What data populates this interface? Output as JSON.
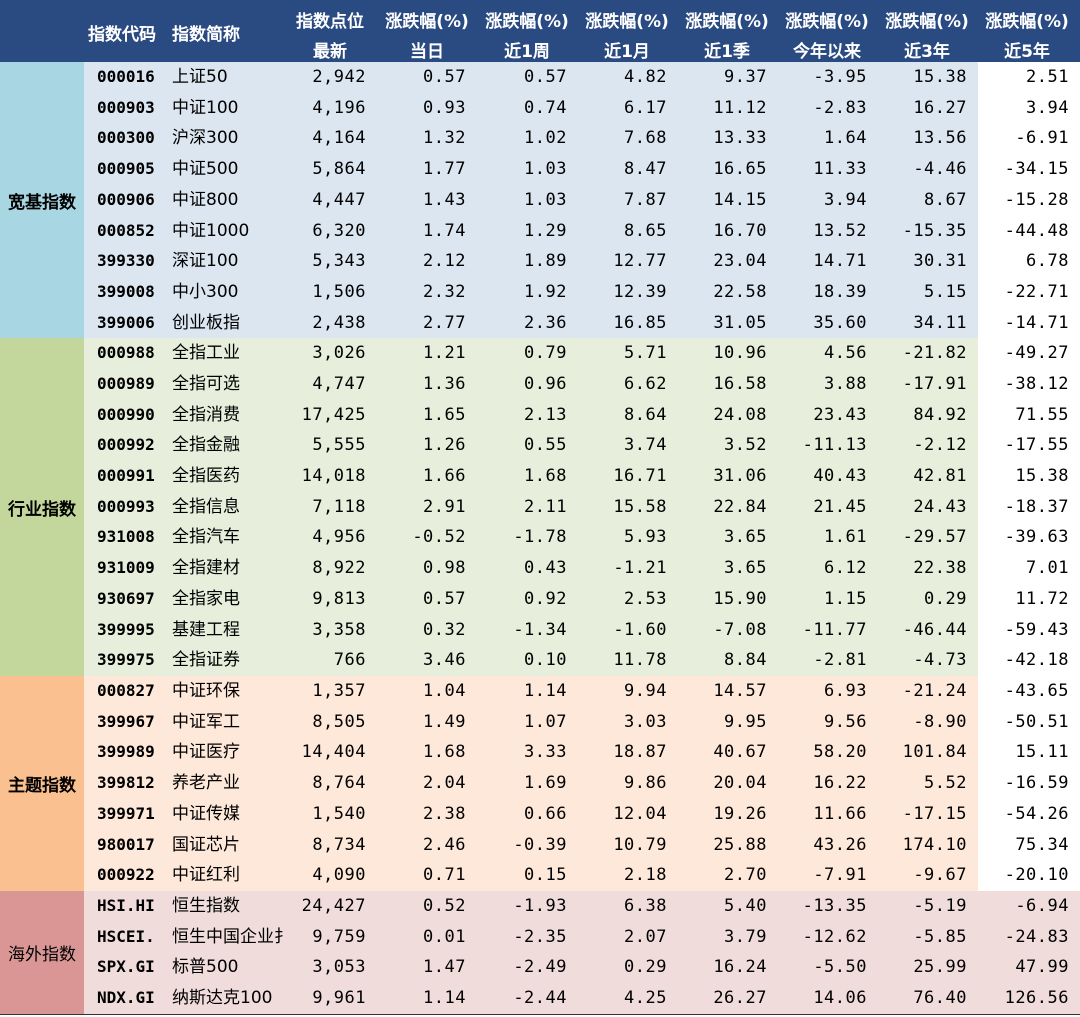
{
  "header": {
    "row1": [
      "指数代码",
      "指数简称",
      "指数点位",
      "涨跌幅(%)",
      "涨跌幅(%)",
      "涨跌幅(%)",
      "涨跌幅(%)",
      "涨跌幅(%)",
      "涨跌幅(%)",
      "涨跌幅(%)"
    ],
    "row2": [
      "",
      "",
      "最新",
      "当日",
      "近1周",
      "近1月",
      "近1季",
      "今年以来",
      "近3年",
      "近5年"
    ]
  },
  "colors": {
    "header_bg": "#2a4a82",
    "groups": [
      "#dbe6f1",
      "#e7eedb",
      "#fde8d9",
      "#f1dcdc"
    ],
    "labels": [
      "#a9d6e3",
      "#c3d69b",
      "#fac090",
      "#d99694"
    ],
    "last_col": [
      "#ffffff",
      "#ffffff",
      "#ffffff",
      "#f1dcdc"
    ]
  },
  "groups": [
    {
      "label": "宽基指数",
      "bold": true,
      "rows": [
        [
          "000016",
          "上证50",
          "2,942",
          "0.57",
          "0.57",
          "4.82",
          "9.37",
          "-3.95",
          "15.38",
          "2.51"
        ],
        [
          "000903",
          "中证100",
          "4,196",
          "0.93",
          "0.74",
          "6.17",
          "11.12",
          "-2.83",
          "16.27",
          "3.94"
        ],
        [
          "000300",
          "沪深300",
          "4,164",
          "1.32",
          "1.02",
          "7.68",
          "13.33",
          "1.64",
          "13.56",
          "-6.91"
        ],
        [
          "000905",
          "中证500",
          "5,864",
          "1.77",
          "1.03",
          "8.47",
          "16.65",
          "11.33",
          "-4.46",
          "-34.15"
        ],
        [
          "000906",
          "中证800",
          "4,447",
          "1.43",
          "1.03",
          "7.87",
          "14.15",
          "3.94",
          "8.67",
          "-15.28"
        ],
        [
          "000852",
          "中证1000",
          "6,320",
          "1.74",
          "1.29",
          "8.65",
          "16.70",
          "13.52",
          "-15.35",
          "-44.48"
        ],
        [
          "399330",
          "深证100",
          "5,343",
          "2.12",
          "1.89",
          "12.77",
          "23.04",
          "14.71",
          "30.31",
          "6.78"
        ],
        [
          "399008",
          "中小300",
          "1,506",
          "2.32",
          "1.92",
          "12.39",
          "22.58",
          "18.39",
          "5.15",
          "-22.71"
        ],
        [
          "399006",
          "创业板指",
          "2,438",
          "2.77",
          "2.36",
          "16.85",
          "31.05",
          "35.60",
          "34.11",
          "-14.71"
        ]
      ]
    },
    {
      "label": "行业指数",
      "bold": true,
      "rows": [
        [
          "000988",
          "全指工业",
          "3,026",
          "1.21",
          "0.79",
          "5.71",
          "10.96",
          "4.56",
          "-21.82",
          "-49.27"
        ],
        [
          "000989",
          "全指可选",
          "4,747",
          "1.36",
          "0.96",
          "6.62",
          "16.58",
          "3.88",
          "-17.91",
          "-38.12"
        ],
        [
          "000990",
          "全指消费",
          "17,425",
          "1.65",
          "2.13",
          "8.64",
          "24.08",
          "23.43",
          "84.92",
          "71.55"
        ],
        [
          "000992",
          "全指金融",
          "5,555",
          "1.26",
          "0.55",
          "3.74",
          "3.52",
          "-11.13",
          "-2.12",
          "-17.55"
        ],
        [
          "000991",
          "全指医药",
          "14,018",
          "1.66",
          "1.68",
          "16.71",
          "31.06",
          "40.43",
          "42.81",
          "15.38"
        ],
        [
          "000993",
          "全指信息",
          "7,118",
          "2.91",
          "2.11",
          "15.58",
          "22.84",
          "21.45",
          "24.43",
          "-18.37"
        ],
        [
          "931008",
          "全指汽车",
          "4,956",
          "-0.52",
          "-1.78",
          "5.93",
          "3.65",
          "1.61",
          "-29.57",
          "-39.63"
        ],
        [
          "931009",
          "全指建材",
          "8,922",
          "0.98",
          "0.43",
          "-1.21",
          "3.65",
          "6.12",
          "22.38",
          "7.01"
        ],
        [
          "930697",
          "全指家电",
          "9,813",
          "0.57",
          "0.92",
          "2.53",
          "15.90",
          "1.15",
          "0.29",
          "11.72"
        ],
        [
          "399995",
          "基建工程",
          "3,358",
          "0.32",
          "-1.34",
          "-1.60",
          "-7.08",
          "-11.77",
          "-46.44",
          "-59.43"
        ],
        [
          "399975",
          "全指证券",
          "766",
          "3.46",
          "0.10",
          "11.78",
          "8.84",
          "-2.81",
          "-4.73",
          "-42.18"
        ]
      ]
    },
    {
      "label": "主题指数",
      "bold": true,
      "rows": [
        [
          "000827",
          "中证环保",
          "1,357",
          "1.04",
          "1.14",
          "9.94",
          "14.57",
          "6.93",
          "-21.24",
          "-43.65"
        ],
        [
          "399967",
          "中证军工",
          "8,505",
          "1.49",
          "1.07",
          "3.03",
          "9.95",
          "9.56",
          "-8.90",
          "-50.51"
        ],
        [
          "399989",
          "中证医疗",
          "14,404",
          "1.68",
          "3.33",
          "18.87",
          "40.67",
          "58.20",
          "101.84",
          "15.11"
        ],
        [
          "399812",
          "养老产业",
          "8,764",
          "2.04",
          "1.69",
          "9.86",
          "20.04",
          "16.22",
          "5.52",
          "-16.59"
        ],
        [
          "399971",
          "中证传媒",
          "1,540",
          "2.38",
          "0.66",
          "12.04",
          "19.26",
          "11.66",
          "-17.15",
          "-54.26"
        ],
        [
          "980017",
          "国证芯片",
          "8,734",
          "2.46",
          "-0.39",
          "10.79",
          "25.88",
          "43.26",
          "174.10",
          "75.34"
        ],
        [
          "000922",
          "中证红利",
          "4,090",
          "0.71",
          "0.15",
          "2.18",
          "2.70",
          "-7.91",
          "-9.67",
          "-20.10"
        ]
      ]
    },
    {
      "label": "海外指数",
      "bold": false,
      "rows": [
        [
          "HSI.HI",
          "恒生指数",
          "24,427",
          "0.52",
          "-1.93",
          "6.38",
          "5.40",
          "-13.35",
          "-5.19",
          "-6.94"
        ],
        [
          "HSCEI.",
          "恒生中国企业扌",
          "9,759",
          "0.01",
          "-2.35",
          "2.07",
          "3.79",
          "-12.62",
          "-5.85",
          "-24.83"
        ],
        [
          "SPX.GI",
          "标普500",
          "3,053",
          "1.47",
          "-2.49",
          "0.29",
          "16.24",
          "-5.50",
          "25.99",
          "47.99"
        ],
        [
          "NDX.GI",
          "纳斯达克100",
          "9,961",
          "1.14",
          "-2.44",
          "4.25",
          "26.27",
          "14.06",
          "76.40",
          "126.56"
        ]
      ]
    }
  ]
}
